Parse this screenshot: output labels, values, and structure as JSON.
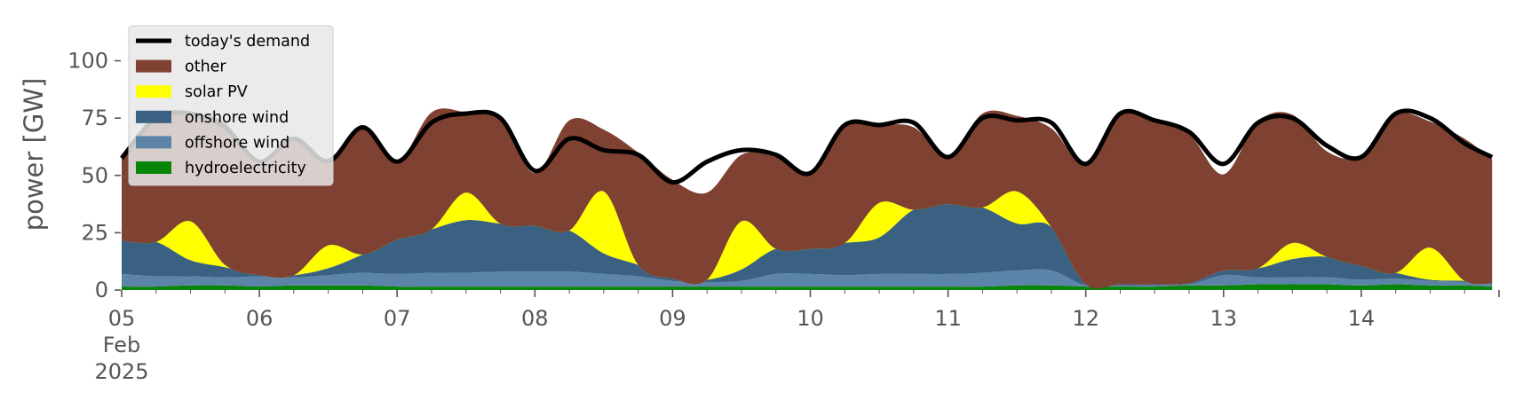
{
  "chart_data": {
    "type": "area",
    "stacked": true,
    "ylabel": "power [GW]",
    "ylim": [
      0,
      118
    ],
    "yticks": [
      0,
      25,
      50,
      75,
      100
    ],
    "x_unit": "days since 2025-02-05 00:00",
    "xlim": [
      0,
      10
    ],
    "xticks": [
      {
        "x": 0,
        "label": "05",
        "sub": [
          "Feb",
          "2025"
        ]
      },
      {
        "x": 1,
        "label": "06"
      },
      {
        "x": 2,
        "label": "07"
      },
      {
        "x": 3,
        "label": "08"
      },
      {
        "x": 4,
        "label": "09"
      },
      {
        "x": 5,
        "label": "10"
      },
      {
        "x": 6,
        "label": "11"
      },
      {
        "x": 7,
        "label": "12"
      },
      {
        "x": 8,
        "label": "13"
      },
      {
        "x": 9,
        "label": "14"
      }
    ],
    "grid": false,
    "legend_position": "top-left",
    "colors": {
      "today's demand": "#000000",
      "other": "#7f4131",
      "solar PV": "#ffff00",
      "onshore wind": "#3b6182",
      "offshore wind": "#5c84a8",
      "hydroelectricity": "#088408"
    },
    "x": [
      0,
      0.25,
      0.5,
      0.75,
      1,
      1.25,
      1.5,
      1.75,
      2,
      2.25,
      2.5,
      2.75,
      3,
      3.25,
      3.5,
      3.75,
      4,
      4.25,
      4.5,
      4.75,
      5,
      5.25,
      5.5,
      5.75,
      6,
      6.25,
      6.5,
      6.75,
      7,
      7.25,
      7.5,
      7.75,
      8,
      8.25,
      8.5,
      8.75,
      9,
      9.25,
      9.5,
      9.75,
      9.95
    ],
    "series": [
      {
        "name": "hydroelectricity",
        "values": [
          1.5,
          1.5,
          2,
          2,
          1.5,
          2,
          2,
          2,
          1.5,
          1.5,
          1.5,
          1.5,
          1.5,
          1.5,
          1.5,
          1.5,
          1.5,
          1.5,
          1.5,
          1.5,
          1.5,
          1.5,
          1.5,
          1.5,
          1.5,
          1.5,
          2,
          2,
          1.5,
          1.5,
          1.5,
          2,
          2,
          2.5,
          2.5,
          2.5,
          2,
          2.5,
          2,
          2,
          1.5
        ]
      },
      {
        "name": "offshore wind",
        "values": [
          5.5,
          4.5,
          4,
          3.5,
          4.5,
          3.5,
          4.5,
          5.5,
          5.5,
          6,
          6,
          6.5,
          6.5,
          6.5,
          5.5,
          4.5,
          2.5,
          2,
          2.5,
          5.5,
          5.5,
          5,
          5.5,
          5.5,
          5.5,
          6,
          6.5,
          6.5,
          0.5,
          0.5,
          0.5,
          0.5,
          4.5,
          3,
          3,
          3,
          2.5,
          2.5,
          2,
          1.5,
          1
        ]
      },
      {
        "name": "onshore wind",
        "values": [
          14.5,
          15,
          7,
          4.5,
          0.5,
          1,
          3,
          8,
          15,
          19,
          23,
          21,
          20,
          18,
          9,
          5,
          1,
          1,
          5,
          11,
          11,
          14,
          16,
          28,
          30.5,
          28.5,
          20.5,
          19,
          0.5,
          0.5,
          0.5,
          0.5,
          2,
          4,
          8,
          9,
          6,
          2.5,
          0.5,
          0.5,
          0.5
        ]
      },
      {
        "name": "solar PV",
        "values": [
          0,
          0,
          17,
          1,
          0,
          0,
          10,
          0,
          0,
          0,
          12,
          0,
          0,
          0,
          27,
          0,
          0,
          0,
          21,
          0,
          0,
          0,
          15,
          0,
          0,
          0,
          14,
          0,
          0,
          0,
          0,
          0,
          0,
          0,
          7,
          0,
          0,
          0,
          14,
          0,
          0
        ]
      },
      {
        "name": "other",
        "values": [
          36,
          54,
          47,
          62,
          48,
          59,
          38,
          56,
          34,
          51,
          35,
          45,
          23,
          48,
          27,
          49,
          43,
          38,
          29,
          40,
          33,
          51,
          34,
          36,
          21,
          41,
          33,
          43,
          52,
          75,
          71,
          65,
          42,
          64,
          56,
          46,
          48,
          69,
          55,
          62,
          54
        ]
      },
      {
        "name": "today's demand",
        "type": "line",
        "values": [
          57.5,
          75,
          77,
          71,
          56,
          66,
          56,
          71,
          56,
          73,
          77,
          75,
          52,
          66,
          61,
          59,
          47,
          56,
          61,
          59,
          51,
          72,
          72,
          73,
          58,
          75,
          74,
          73,
          55,
          77,
          74,
          69,
          55,
          73,
          75,
          63,
          58,
          77,
          75,
          64,
          58
        ]
      }
    ]
  }
}
